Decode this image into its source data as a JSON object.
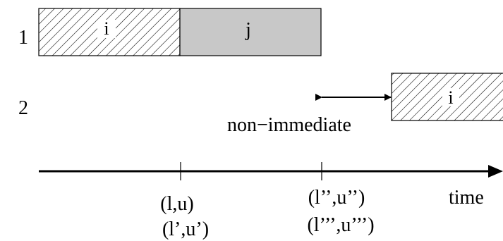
{
  "rows": [
    {
      "label": "1"
    },
    {
      "label": "2"
    }
  ],
  "blocks": [
    {
      "label": "i",
      "row": "1",
      "style": "hatched"
    },
    {
      "label": "j",
      "row": "1",
      "style": "filled"
    },
    {
      "label": "i",
      "row": "2",
      "style": "hatched"
    }
  ],
  "gap": {
    "label": "non−immediate"
  },
  "axis": {
    "label": "time",
    "ticks": [
      {
        "line1": "(l,u)",
        "line2": "(l’,u’)"
      },
      {
        "line1": "(l’’,u’’)",
        "line2": "(l’’’,u’’’)"
      }
    ]
  },
  "colors": {
    "ink": "#000000",
    "fill": "#c8c8c8",
    "background": "#ffffff"
  }
}
